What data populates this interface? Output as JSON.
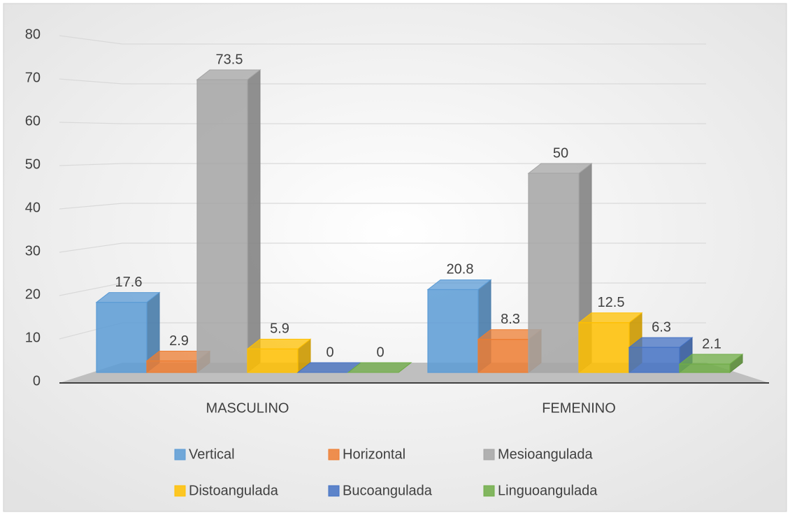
{
  "chart_data": {
    "type": "bar3d",
    "categories": [
      "MASCULINO",
      "FEMENINO"
    ],
    "series": [
      {
        "name": "Vertical",
        "color": "#5b9bd5",
        "values": [
          17.6,
          20.8
        ]
      },
      {
        "name": "Horizontal",
        "color": "#ed7d31",
        "values": [
          2.9,
          8.3
        ]
      },
      {
        "name": "Mesioangulada",
        "color": "#a5a5a5",
        "values": [
          73.5,
          50
        ]
      },
      {
        "name": "Distoangulada",
        "color": "#ffc000",
        "values": [
          5.9,
          12.5
        ]
      },
      {
        "name": "Bucoangulada",
        "color": "#4472c4",
        "values": [
          0,
          6.3
        ]
      },
      {
        "name": "Linguoangulada",
        "color": "#70ad47",
        "values": [
          0,
          2.1
        ]
      }
    ],
    "ylim": [
      0,
      80
    ],
    "yticks": [
      0,
      10,
      20,
      30,
      40,
      50,
      60,
      70,
      80
    ],
    "grid": true,
    "legend": "bottom"
  }
}
